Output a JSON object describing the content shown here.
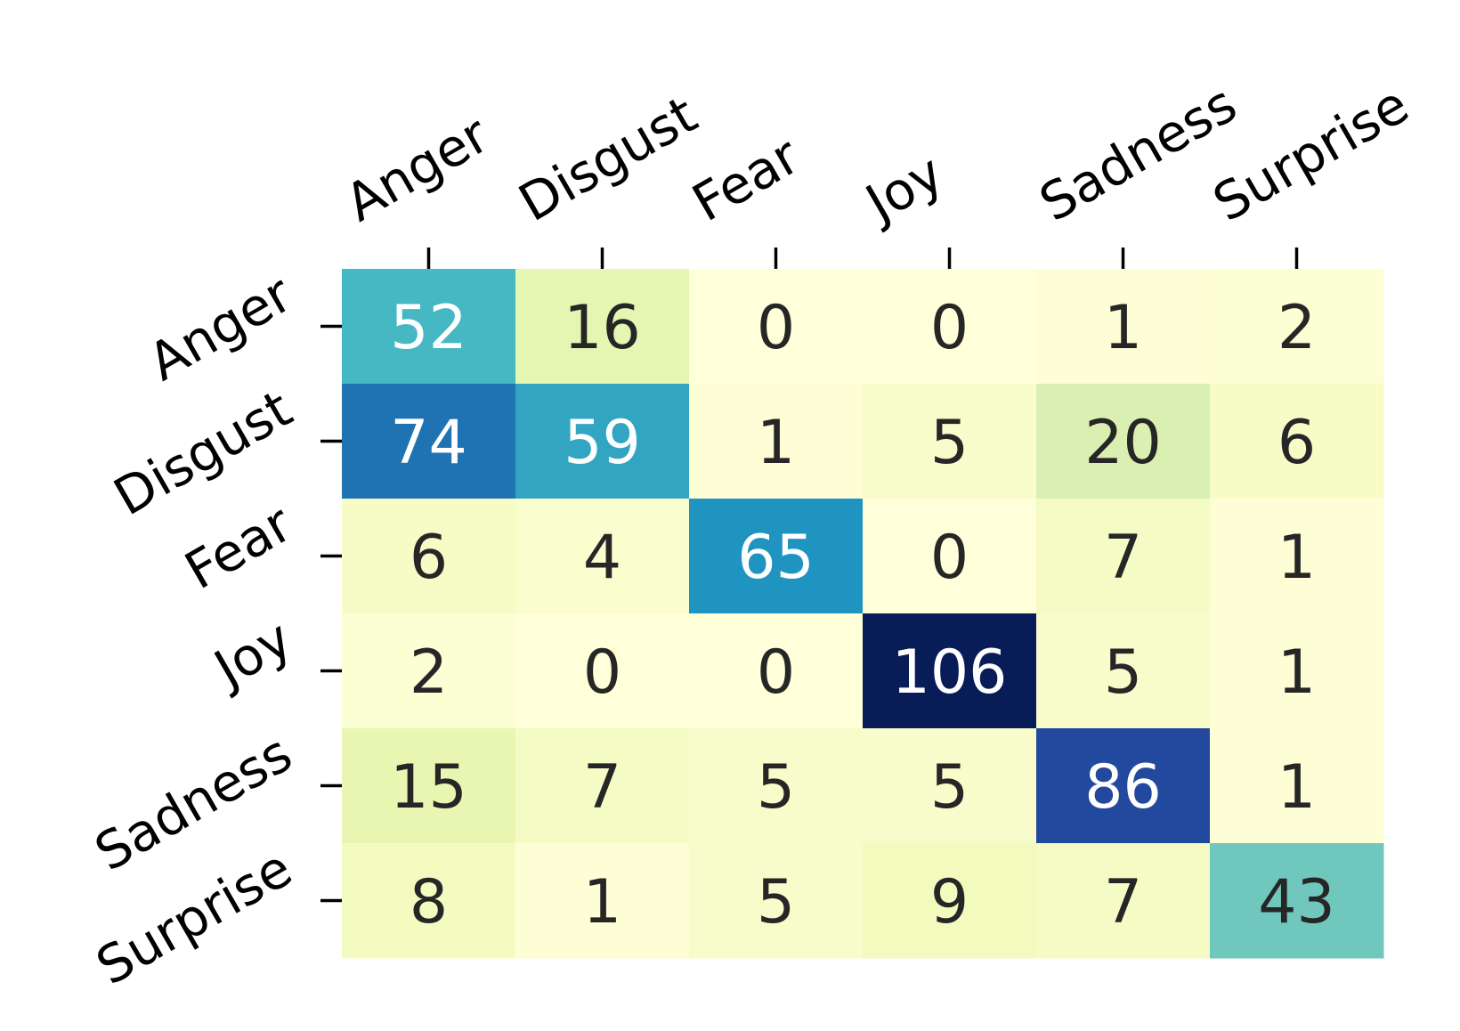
{
  "chart_data": {
    "type": "heatmap",
    "title": "",
    "xlabel": "",
    "ylabel": "",
    "x_categories": [
      "Anger",
      "Disgust",
      "Fear",
      "Joy",
      "Sadness",
      "Surprise"
    ],
    "y_categories": [
      "Anger",
      "Disgust",
      "Fear",
      "Joy",
      "Sadness",
      "Surprise"
    ],
    "values": [
      [
        52,
        16,
        0,
        0,
        1,
        2
      ],
      [
        74,
        59,
        1,
        5,
        20,
        6
      ],
      [
        6,
        4,
        65,
        0,
        7,
        1
      ],
      [
        2,
        0,
        0,
        106,
        5,
        1
      ],
      [
        15,
        7,
        5,
        5,
        86,
        1
      ],
      [
        8,
        1,
        5,
        9,
        7,
        43
      ]
    ],
    "colormap": "YlGnBu",
    "vmin": 0,
    "vmax": 106,
    "annotations": true,
    "colorbar": false,
    "x_tick_position": "top",
    "grid": false,
    "colors": {
      "text_dark": "#262626",
      "text_light": "#ffffff",
      "tick": "#000000"
    }
  }
}
